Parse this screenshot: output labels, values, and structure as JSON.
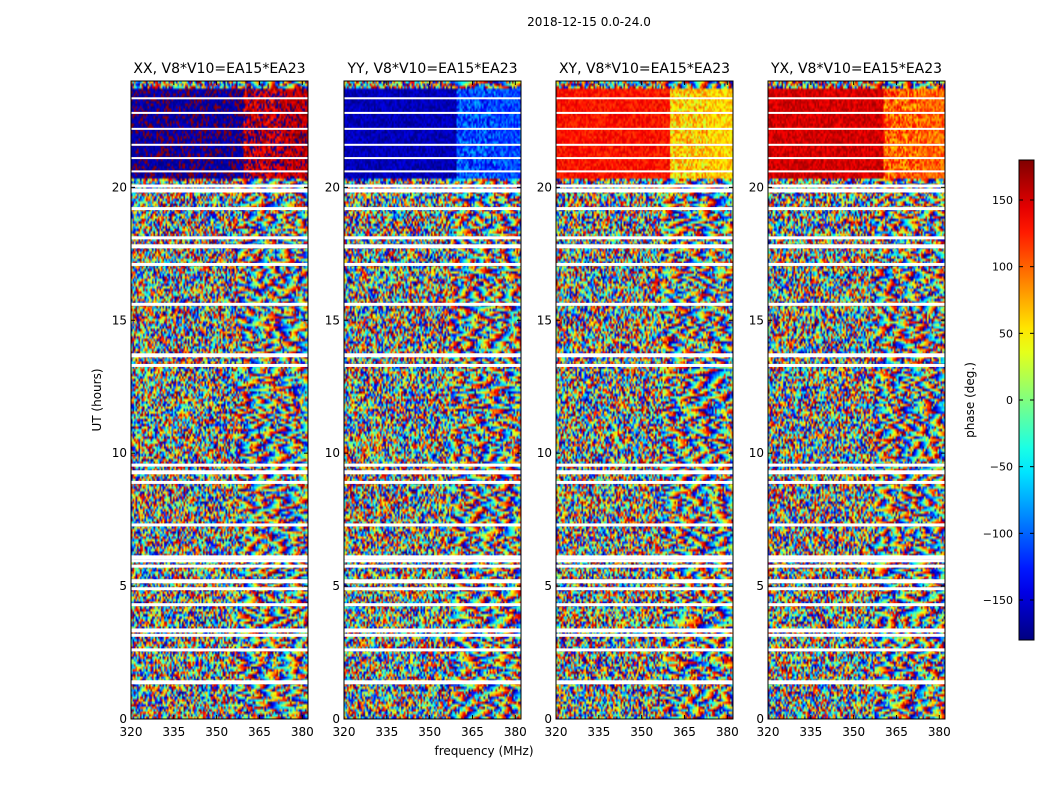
{
  "chart_data": {
    "type": "heatmap",
    "title": "2018-12-15 0.0-24.0",
    "xlabel": "frequency (MHz)",
    "ylabel": "UT (hours)",
    "xlim": [
      320,
      382
    ],
    "ylim": [
      0,
      24
    ],
    "xticks": [
      320,
      335,
      350,
      365,
      380
    ],
    "yticks": [
      0,
      5,
      10,
      15,
      20
    ],
    "panels": [
      {
        "name": "XX",
        "title": "XX, V8*V10=EA15*EA23",
        "top_band_phase": -170,
        "top_band_alt_phase": 160
      },
      {
        "name": "YY",
        "title": "YY, V8*V10=EA15*EA23",
        "top_band_phase": -160,
        "top_band_alt_phase": -110
      },
      {
        "name": "XY",
        "title": "XY, V8*V10=EA15*EA23",
        "top_band_phase": 130,
        "top_band_alt_phase": 60
      },
      {
        "name": "YX",
        "title": "YX, V8*V10=EA15*EA23",
        "top_band_phase": 150,
        "top_band_alt_phase": 100
      }
    ],
    "top_band_hours": [
      20.3,
      23.7
    ],
    "colorbar": {
      "label": "phase (deg.)",
      "range": [
        -180,
        180
      ],
      "ticks": [
        -150,
        -100,
        -50,
        0,
        50,
        100,
        150
      ],
      "tick_labels": [
        "−150",
        "−100",
        "−50",
        "0",
        "50",
        "100",
        "150"
      ],
      "colormap": "jet"
    },
    "flagged_hours": [
      1.4,
      2.6,
      3.15,
      3.35,
      4.3,
      4.9,
      5.2,
      5.75,
      5.95,
      6.1,
      7.3,
      8.9,
      9.3,
      9.55,
      13.3,
      13.7,
      15.6,
      17.1,
      17.8,
      18.1,
      19.2,
      19.9,
      20.05
    ]
  }
}
